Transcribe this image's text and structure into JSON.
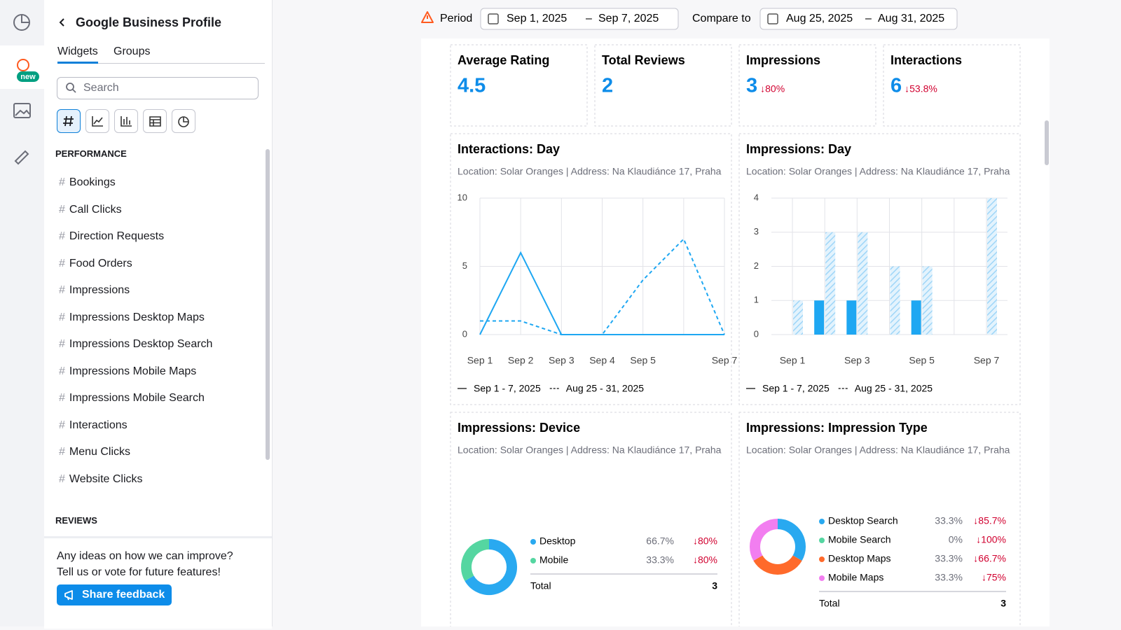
{
  "rail": {
    "badge": "new"
  },
  "sidebar": {
    "title": "Google Business Profile",
    "tabs": [
      "Widgets",
      "Groups"
    ],
    "active_tab": 0,
    "search_placeholder": "Search",
    "item_prefix": "#",
    "sections": [
      {
        "heading": "PERFORMANCE",
        "items": [
          "Bookings",
          "Call Clicks",
          "Direction Requests",
          "Food Orders",
          "Impressions",
          "Impressions Desktop Maps",
          "Impressions Desktop Search",
          "Impressions Mobile Maps",
          "Impressions Mobile Search",
          "Interactions",
          "Menu Clicks",
          "Website Clicks"
        ]
      },
      {
        "heading": "REVIEWS"
      }
    ],
    "feedback": {
      "lines": [
        "Any ideas on how we can improve?",
        "Tell us or vote for future features!"
      ],
      "button": "Share feedback"
    }
  },
  "header": {
    "period_label": "Period",
    "period": {
      "from": "Sep 1, 2025",
      "to": "Sep 7, 2025"
    },
    "separator": "–",
    "compare_label": "Compare to",
    "compare": {
      "from": "Aug 25, 2025",
      "to": "Aug 31, 2025"
    }
  },
  "kpis": [
    {
      "label": "Average Rating",
      "value": 4.5
    },
    {
      "label": "Total Reviews",
      "value": 2
    },
    {
      "label": "Impressions",
      "value": 3,
      "change": "↓80%"
    },
    {
      "label": "Interactions",
      "value": 6,
      "change": "↓53.8%"
    }
  ],
  "widgets": [
    {
      "type": "line",
      "title": "Interactions: Day",
      "subtitle": "Location: Solar Oranges | Address: Na Klaudiánce 17, Praha",
      "categories": [
        "Sep 1",
        "Sep 2",
        "Sep 3",
        "Sep 4",
        "Sep 5",
        null,
        "Sep 7"
      ],
      "series": [
        {
          "name": "Sep 1 - 7, 2025",
          "color": "#1ea7f2",
          "style": "solid",
          "values": [
            0,
            6,
            0,
            0,
            0,
            0,
            0
          ]
        },
        {
          "name": "Aug 25 - 31, 2025",
          "color": "#1ea7f2",
          "style": "dashed",
          "values": [
            1,
            1,
            0,
            0,
            4,
            7,
            0
          ]
        }
      ],
      "ylim": [
        0,
        10
      ],
      "yticks": [
        0,
        5,
        10
      ],
      "grid": true
    },
    {
      "type": "bar",
      "title": "Impressions: Day",
      "subtitle": "Location: Solar Oranges | Address: Na Klaudiánce 17, Praha",
      "categories": [
        "Sep 1",
        null,
        "Sep 3",
        null,
        "Sep 5",
        null,
        "Sep 7"
      ],
      "series": [
        {
          "name": "Sep 1 - 7, 2025",
          "color": "#1ea7f2",
          "style": "solid",
          "values": [
            0,
            1,
            1,
            0,
            1,
            0,
            0
          ]
        },
        {
          "name": "Aug 25 - 31, 2025",
          "color": "#1ea7f2",
          "style": "hatched",
          "values": [
            1,
            3,
            3,
            2,
            2,
            0,
            4
          ]
        }
      ],
      "ylim": [
        0,
        4
      ],
      "yticks": [
        0,
        1,
        2,
        3,
        4
      ],
      "grid": true
    },
    {
      "type": "donut",
      "title": "Impressions: Device",
      "subtitle": "Location: Solar Oranges | Address: Na Klaudiánce 17, Praha",
      "categories": [
        "Desktop",
        "Mobile"
      ],
      "colors": [
        "#29a9f0",
        "#55d6a1"
      ],
      "values": [
        66.7,
        33.3
      ],
      "value_labels": [
        "66.7%",
        "33.3%"
      ],
      "changes": [
        "↓80%",
        "↓80%"
      ],
      "total_label": "Total",
      "total": 3
    },
    {
      "type": "donut",
      "title": "Impressions: Impression Type",
      "subtitle": "Location: Solar Oranges | Address: Na Klaudiánce 17, Praha",
      "categories": [
        "Desktop Search",
        "Mobile Search",
        "Desktop Maps",
        "Mobile Maps"
      ],
      "colors": [
        "#29a9f0",
        "#55d6a1",
        "#ff6a2b",
        "#f27ef0"
      ],
      "values": [
        33.3,
        0,
        33.3,
        33.3
      ],
      "value_labels": [
        "33.3%",
        "0%",
        "33.3%",
        "33.3%"
      ],
      "changes": [
        "↓85.7%",
        "↓100%",
        "↓66.7%",
        "↓75%"
      ],
      "total_label": "Total",
      "total": 3
    }
  ]
}
